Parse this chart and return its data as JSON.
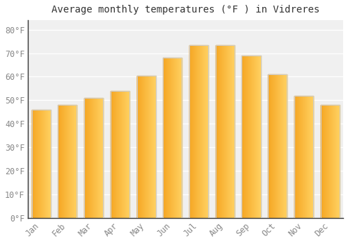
{
  "title": "Average monthly temperatures (°F ) in Vidreres",
  "months": [
    "Jan",
    "Feb",
    "Mar",
    "Apr",
    "May",
    "Jun",
    "Jul",
    "Aug",
    "Sep",
    "Oct",
    "Nov",
    "Dec"
  ],
  "values": [
    46,
    48,
    51,
    54,
    60.5,
    68,
    73.5,
    73.5,
    69,
    61,
    52,
    48
  ],
  "bar_color_left": "#F5A623",
  "bar_color_right": "#FFD060",
  "bar_edge_color": "#CCCCCC",
  "background_color": "#FFFFFF",
  "plot_bg_color": "#F0F0F0",
  "grid_color": "#FFFFFF",
  "yticks": [
    0,
    10,
    20,
    30,
    40,
    50,
    60,
    70,
    80
  ],
  "ylim": [
    0,
    84
  ],
  "title_fontsize": 10,
  "tick_fontsize": 8.5
}
